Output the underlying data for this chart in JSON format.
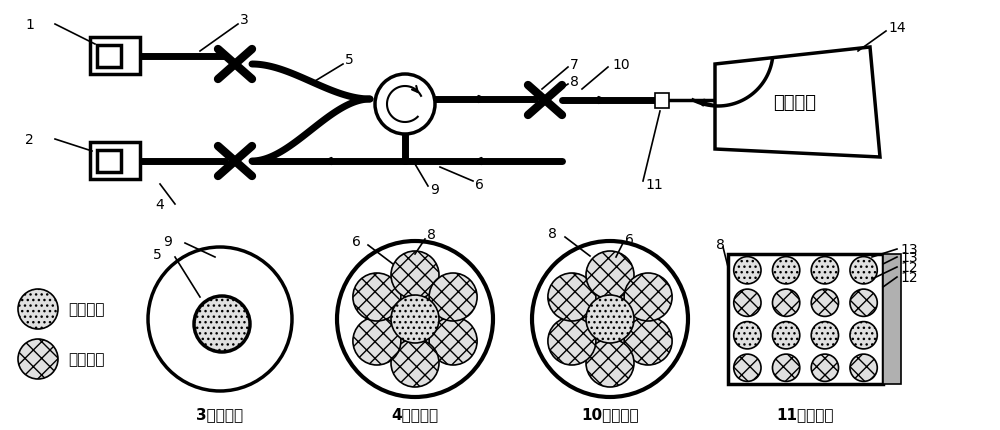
{
  "bg_color": "#ffffff",
  "line_color": "#000000",
  "lw_thick": 5.0,
  "lw_med": 2.5,
  "lw_thin": 1.2,
  "labels": {
    "leaf_text": "叶片端面",
    "cross_sec_3": "3的剖面图",
    "cross_sec_4": "4的剖面图",
    "cross_sec_10": "10的剖面图",
    "cross_sec_11": "11的剖面图",
    "legend_single": "单模光纤",
    "legend_multi": "多模光纤"
  }
}
